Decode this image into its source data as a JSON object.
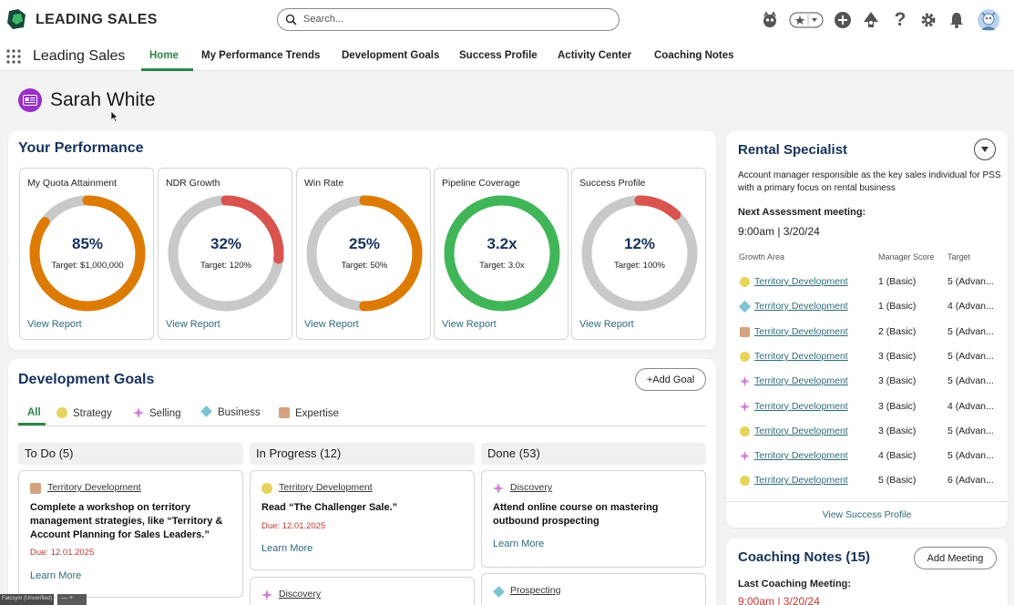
{
  "topbar": {
    "brand": "LEADING SALES",
    "search_placeholder": "Search...",
    "colors": {
      "logo_dark": "#17493a",
      "logo_light": "#3db86a"
    }
  },
  "nav": {
    "app_name": "Leading Sales",
    "tabs": [
      {
        "label": "Home",
        "active": true
      },
      {
        "label": "My Performance Trends"
      },
      {
        "label": "Development Goals"
      },
      {
        "label": "Success Profile"
      },
      {
        "label": "Activity Center"
      },
      {
        "label": "Coaching Notes"
      }
    ]
  },
  "user": {
    "name": "Sarah White"
  },
  "performance": {
    "title": "Your Performance",
    "link_label": "View Report",
    "kpis": [
      {
        "title": "My Quota Attainment",
        "value": "85%",
        "target": "Target: $1,000,000",
        "fill": 0.85,
        "color": "#dd7a01"
      },
      {
        "title": "NDR Growth",
        "value": "32%",
        "target": "Target: 120%",
        "fill": 0.2667,
        "color": "#d9534f"
      },
      {
        "title": "Win Rate",
        "value": "25%",
        "target": "Target: 50%",
        "fill": 0.5,
        "color": "#dd7a01"
      },
      {
        "title": "Pipeline Coverage",
        "value": "3.2x",
        "target": "Target: 3.0x",
        "fill": 1.0,
        "color": "#41b658"
      },
      {
        "title": "Success Profile",
        "value": "12%",
        "target": "Target: 100%",
        "fill": 0.12,
        "color": "#d9534f"
      }
    ]
  },
  "goals": {
    "title": "Development Goals",
    "add_label": "+Add Goal",
    "filters": [
      "All",
      "Strategy",
      "Selling",
      "Business",
      "Expertise"
    ],
    "columns": [
      {
        "label": "To Do (5)"
      },
      {
        "label": "In Progress (12)"
      },
      {
        "label": "Done (53)"
      }
    ],
    "cards": [
      {
        "tag": "Territory Development",
        "title": "Complete a workshop on territory management strategies, like “Territory & Account Planning for Sales Leaders.”",
        "due": "Due: 12.01.2025",
        "link": "Learn More"
      },
      {
        "tag": "Territory Development",
        "title": "Read “The Challenger Sale.”",
        "due": "Due: 12.01.2025",
        "link": "Learn More"
      },
      {
        "tag": "Discovery",
        "title": "Attend online course on mastering outbound prospecting",
        "link": "Learn More"
      },
      {
        "tag": "Discovery"
      },
      {
        "tag": "Prospecting"
      }
    ],
    "colors": {
      "strategy": "#e6d35c",
      "selling": "#d37fd9",
      "business": "#7cc4d2",
      "expertise": "#d4a27f"
    }
  },
  "rental": {
    "title": "Rental Specialist",
    "description": "Account manager responsible as the key sales individual for PSS with a primary focus on rental business",
    "next_label": "Next Assessment meeting:",
    "next_time": "9:00am | 3/20/24",
    "headers": [
      "Growth Area",
      "Manager Score",
      "Target"
    ],
    "rows": [
      {
        "icon": "strategy",
        "area": "Territory Development",
        "score": "1 (Basic)",
        "target": "5 (Advan..."
      },
      {
        "icon": "business",
        "area": "Territory Development",
        "score": "1 (Basic)",
        "target": "4 (Advan..."
      },
      {
        "icon": "expertise",
        "area": "Territory Development",
        "score": "2 (Basic)",
        "target": "5 (Advan..."
      },
      {
        "icon": "strategy",
        "area": "Territory Development",
        "score": "3 (Basic)",
        "target": "5 (Advan..."
      },
      {
        "icon": "selling",
        "area": "Territory Development",
        "score": "3 (Basic)",
        "target": "5 (Advan..."
      },
      {
        "icon": "selling",
        "area": "Territory Development",
        "score": "3 (Basic)",
        "target": "4 (Advan..."
      },
      {
        "icon": "strategy",
        "area": "Territory Development",
        "score": "3 (Basic)",
        "target": "5 (Advan..."
      },
      {
        "icon": "selling",
        "area": "Territory Development",
        "score": "4 (Basic)",
        "target": "5 (Advan..."
      },
      {
        "icon": "strategy",
        "area": "Territory Development",
        "score": "5 (Basic)",
        "target": "6 (Advan..."
      }
    ],
    "view_link": "View Success Profile"
  },
  "coaching": {
    "title": "Coaching Notes (15)",
    "add_label": "Add Meeting",
    "last_label": "Last Coaching Meeting:",
    "last_time": "9:00am | 3/20/24"
  },
  "footer": {
    "badge": "Falcsym (Unverified)",
    "controls": "— +"
  }
}
